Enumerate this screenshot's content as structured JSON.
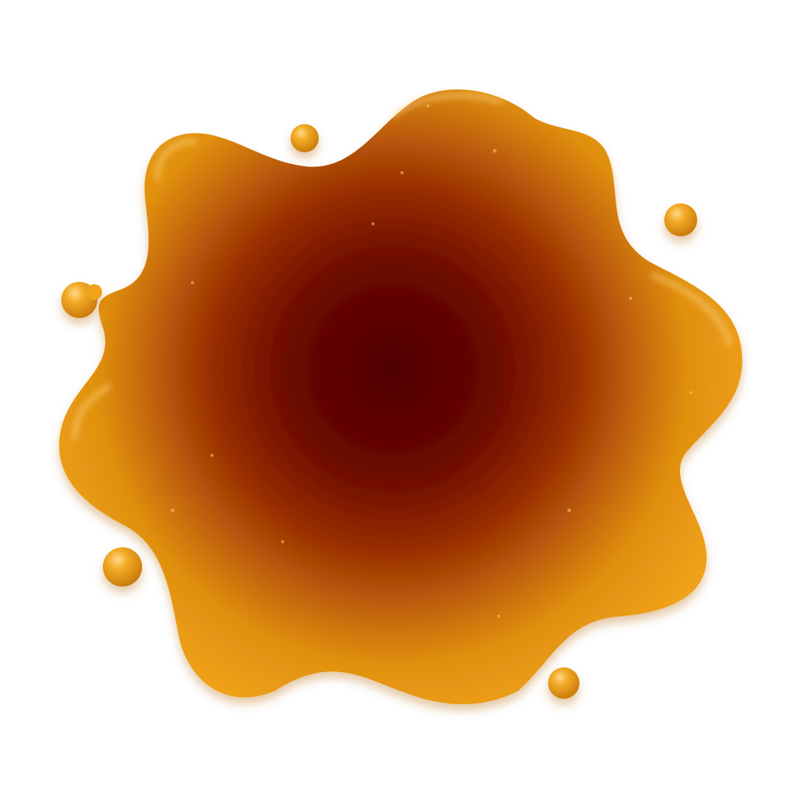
{
  "scene": {
    "subject": "syrup-splash-icon",
    "colors": {
      "background": "#ffffff",
      "edge_gold": "#f0a21a",
      "rim_amber": "#d9860c",
      "mid_orange": "#b04a06",
      "center_deep": "#4f0000",
      "highlight": "#ffd98a",
      "shadow": "#b3640a"
    },
    "droplet_count": 6
  }
}
